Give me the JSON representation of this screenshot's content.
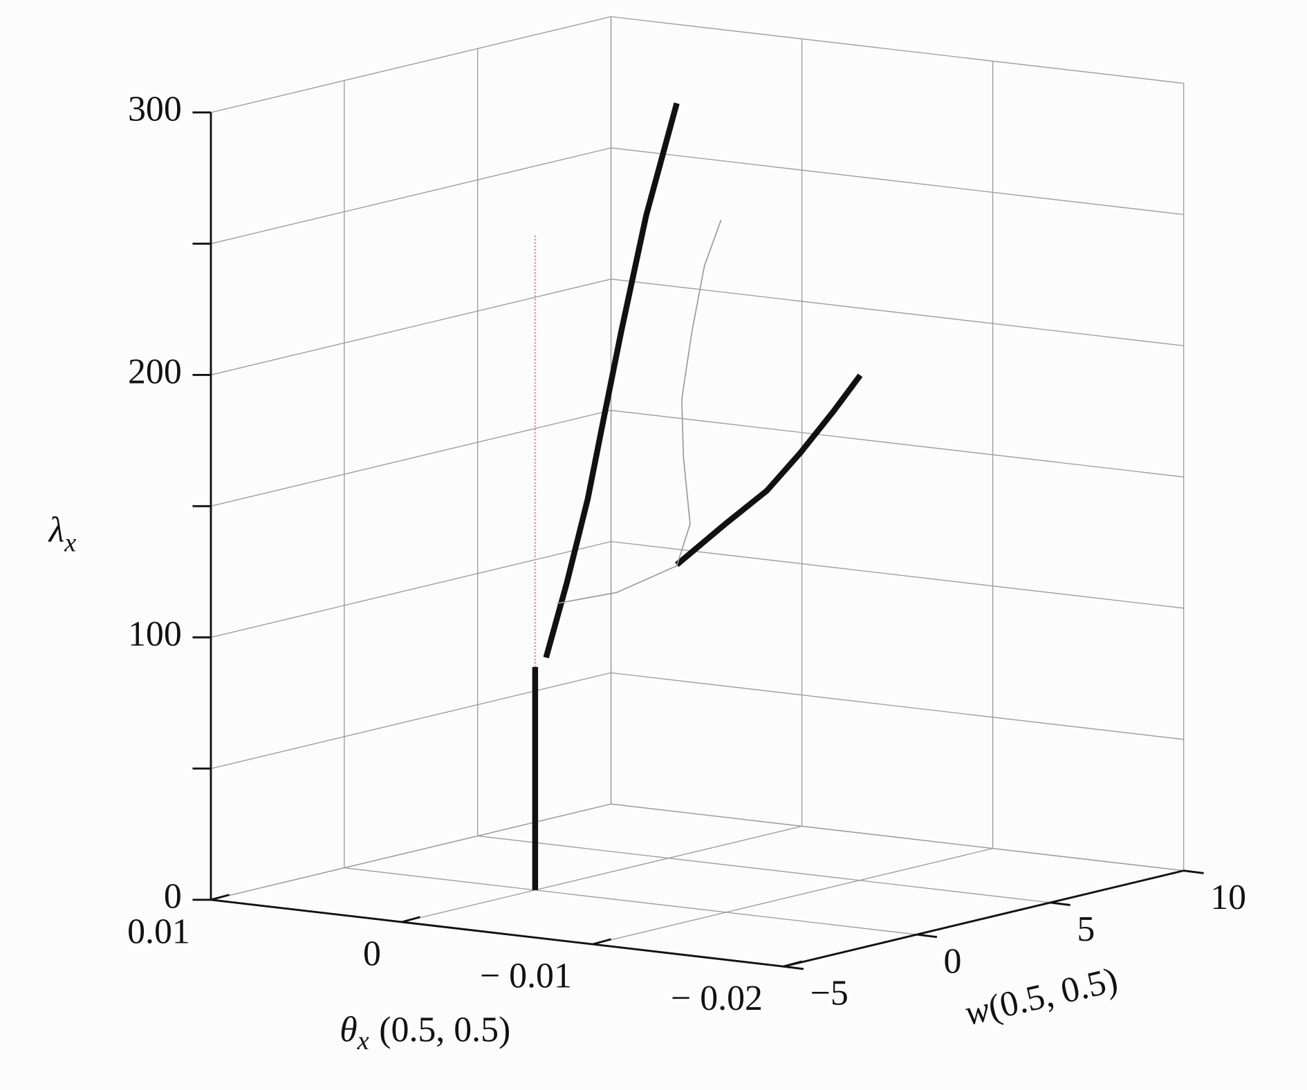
{
  "chart_data": {
    "type": "line3d",
    "xlabel": {
      "symbol": "θ",
      "subscript": "x",
      "args": "(0.5, 0.5)"
    },
    "ylabel": {
      "symbol": "w",
      "args": "(0.5, 0.5)"
    },
    "zlabel": {
      "symbol": "λ",
      "subscript": "x"
    },
    "xlim": [
      0.01,
      -0.02
    ],
    "xticks": [
      0.01,
      0,
      {
        "value": -0.01,
        "label": "− 0.01"
      },
      {
        "value": -0.02,
        "label": "− 0.02"
      }
    ],
    "ylim": [
      -5,
      10
    ],
    "yticks": [
      {
        "value": -5,
        "label": "−5"
      },
      0,
      5,
      10
    ],
    "zlim": [
      0,
      300
    ],
    "zticks": [
      0,
      100,
      200,
      300
    ],
    "zminorticks": [
      50,
      150,
      250
    ],
    "grid": true,
    "series": [
      {
        "color": "#111111",
        "style": "thick",
        "x": [
          0,
          0
        ],
        "y": [
          0,
          0
        ],
        "z": [
          0,
          85
        ]
      },
      {
        "color": "#e39aae",
        "style": "dotted",
        "x": [
          0,
          0
        ],
        "y": [
          0,
          0
        ],
        "z": [
          85,
          250
        ]
      },
      {
        "color": "#111111",
        "style": "thick",
        "x": [
          0,
          0,
          0,
          0,
          0,
          0,
          0
        ],
        "y": [
          0.41,
          1.19,
          1.97,
          2.59,
          3.22,
          4.16,
          5.31
        ],
        "z": [
          87.6,
          114.3,
          144.1,
          174.4,
          204.6,
          246.8,
          286.9
        ]
      },
      {
        "color": "#111111",
        "style": "thick",
        "x": [
          -0.005,
          -0.005,
          -0.005,
          -0.005,
          -0.005,
          -0.005
        ],
        "y": [
          1.73,
          3.55,
          5.11,
          6.36,
          7.61,
          8.61
        ],
        "z": [
          124,
          135.1,
          144,
          155.3,
          168.2,
          179.4
        ]
      },
      {
        "color": "#9a9a9a",
        "style": "thin",
        "x": [
          -0.005,
          -0.005,
          -0.005,
          -0.005,
          -0.005,
          -0.005,
          -0.005,
          -0.005,
          -0.005
        ],
        "y": [
          -2.77,
          -0.52,
          1.73,
          2.23,
          1.98,
          1.92,
          2.29,
          2.77,
          3.39
        ],
        "z": [
          120.2,
          118.9,
          123.6,
          138.3,
          164.3,
          186.6,
          211,
          235.4,
          251.3
        ]
      }
    ]
  }
}
